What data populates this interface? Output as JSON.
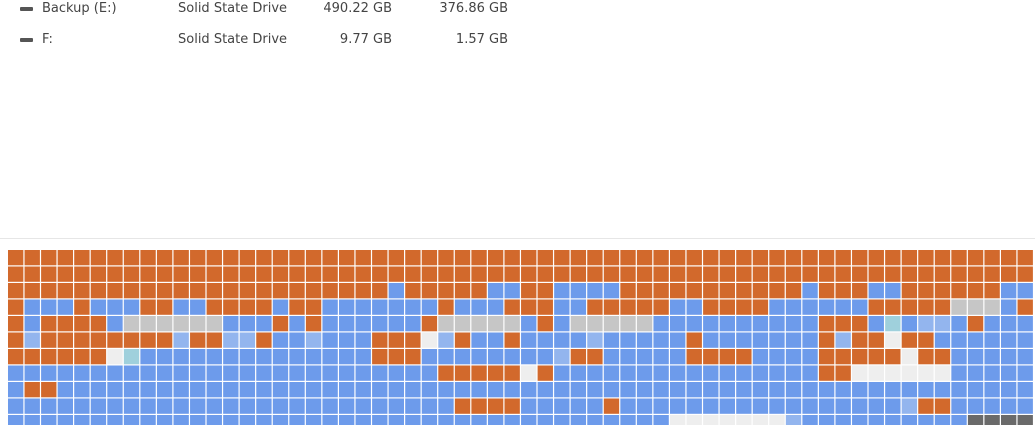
{
  "drives": [
    {
      "name": "Backup (E:)",
      "media_type": "Solid State Drive",
      "size": "490.22 GB",
      "free": "376.86 GB"
    },
    {
      "name": "F:",
      "media_type": "Solid State Drive",
      "size": "9.77 GB",
      "free": "1.57 GB"
    }
  ]
}
